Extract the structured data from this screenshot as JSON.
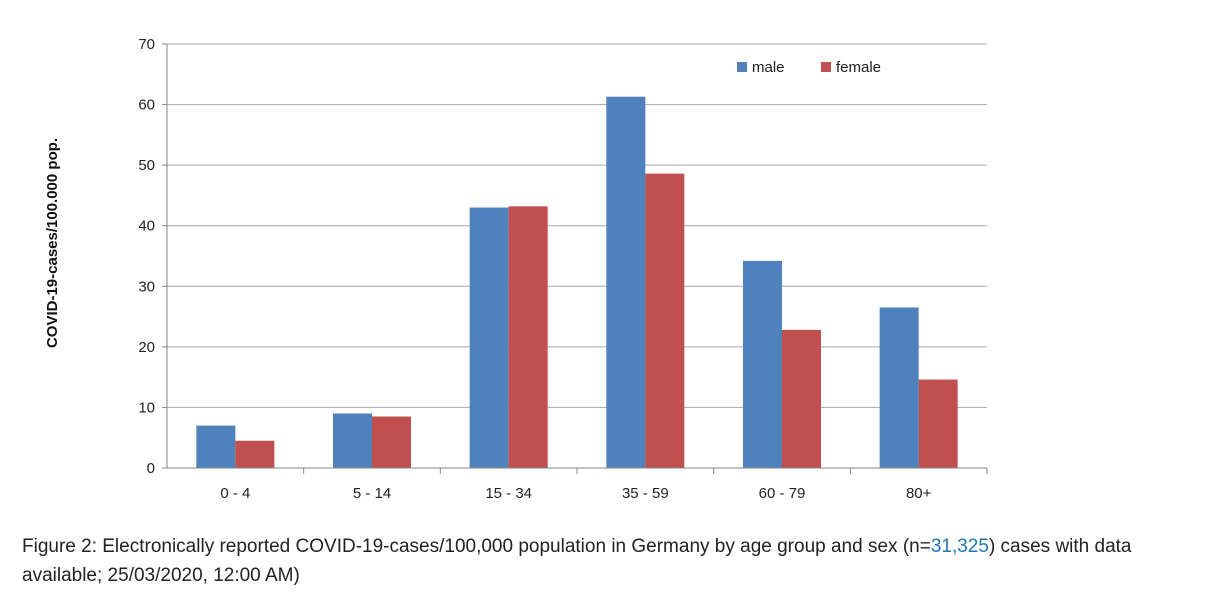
{
  "chart_data": {
    "type": "bar",
    "categories": [
      "0 - 4",
      "5 - 14",
      "15 - 34",
      "35 - 59",
      "60 - 79",
      "80+"
    ],
    "series": [
      {
        "name": "male",
        "values": [
          7.0,
          9.0,
          43.0,
          61.3,
          34.2,
          26.5
        ],
        "color": "#4f81bd"
      },
      {
        "name": "female",
        "values": [
          4.5,
          8.5,
          43.2,
          48.6,
          22.8,
          14.6
        ],
        "color": "#c0504d"
      }
    ],
    "ylabel": "COVID-19-cases/100.000 pop.",
    "xlabel": "",
    "ylim": [
      0,
      70
    ],
    "yticks": [
      0,
      10,
      20,
      30,
      40,
      50,
      60,
      70
    ],
    "grid": true,
    "legend": "top-right"
  },
  "caption": {
    "prefix": "Figure 2: Electronically reported COVID-19-cases/100,000 population in Germany by age group and sex (n=",
    "n": "31,325",
    "suffix": ") cases with data available; 25/03/2020, 12:00 AM)"
  }
}
